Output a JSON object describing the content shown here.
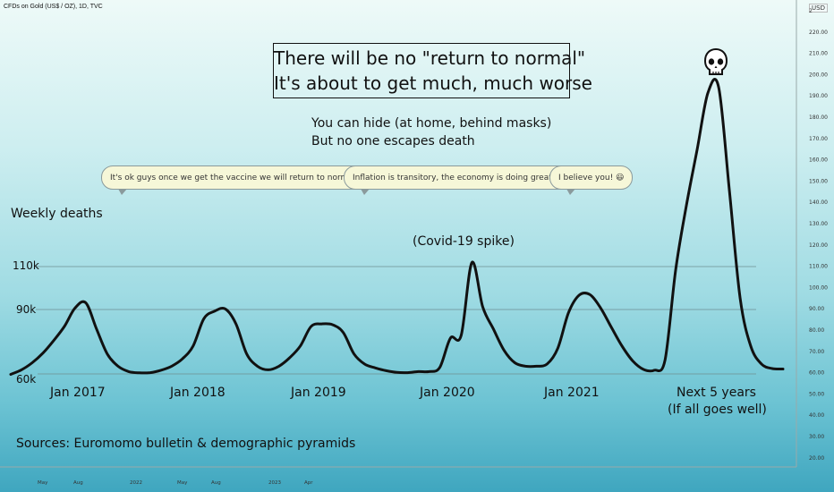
{
  "symbol_label": "CFDs on Gold (US$ / OZ), 1D, TVC",
  "currency_label": "USD",
  "headline": {
    "line1": "There will be no \"return to normal\"",
    "line2": "It's about to get much, much worse"
  },
  "subtitle": {
    "line1": "You can hide (at home, behind masks)",
    "line2": "But no one escapes death"
  },
  "bubbles": [
    {
      "text": "It's ok guys once we get the vaccine we will return to normal 🙄"
    },
    {
      "text": "Inflation is transitory, the economy is doing great 😄"
    },
    {
      "text": "I believe you! 😃"
    }
  ],
  "skull_icon": "skull-icon",
  "chart_data": {
    "type": "line",
    "title": "",
    "ylabel": "Weekly deaths",
    "y_ticks": [
      "60k",
      "90k",
      "110k"
    ],
    "ylim": [
      58,
      203
    ],
    "x_labels": [
      "Jan 2017",
      "Jan 2018",
      "Jan 2019",
      "Jan 2020",
      "Jan 2021",
      "Next 5 years"
    ],
    "x_sublabel": "(If all goes well)",
    "annotation": "(Covid-19 spike)",
    "sources": "Sources: Euromomo bulletin & demographic pyramids",
    "price_axis": [
      "2",
      "220.00",
      "210.00",
      "200.00",
      "190.00",
      "180.00",
      "170.00",
      "160.00",
      "150.00",
      "140.00",
      "130.00",
      "120.00",
      "110.00",
      "100.00",
      "90.00",
      "80.00",
      "70.00",
      "60.00",
      "50.00",
      "40.00",
      "30.00",
      "20.00"
    ],
    "time_axis": [
      "May",
      "Aug",
      "2022",
      "May",
      "Aug",
      "2023",
      "Apr"
    ],
    "grid": true,
    "series": [
      {
        "x": [
          0,
          5,
          10,
          15,
          20,
          25,
          30,
          35,
          40,
          45,
          50,
          55,
          60,
          65,
          70,
          75,
          80,
          85,
          90,
          95,
          100,
          105,
          110,
          115,
          120,
          125,
          130,
          135,
          140,
          145,
          150,
          155,
          160,
          165,
          170,
          175,
          180,
          185,
          190,
          195,
          200,
          205,
          210,
          215,
          220,
          225,
          230,
          235,
          240,
          245,
          250,
          255,
          260,
          265,
          270,
          275,
          280,
          285,
          290,
          295,
          300,
          305,
          310,
          315,
          320,
          325,
          330,
          335,
          340,
          345,
          350,
          355,
          360
        ],
        "values": [
          59.8,
          61.9,
          65.2,
          69.7,
          75.5,
          82.1,
          90.7,
          93.1,
          80.9,
          69.3,
          63.6,
          61.1,
          60.5,
          60.6,
          61.7,
          63.6,
          67.0,
          73.0,
          85.7,
          89.2,
          90.3,
          83.3,
          69.3,
          63.6,
          61.9,
          63.6,
          67.5,
          73.0,
          82.1,
          83.3,
          82.9,
          79.3,
          69.3,
          64.6,
          62.8,
          61.5,
          60.7,
          60.6,
          61.1,
          61.1,
          63.0,
          76.7,
          78.0,
          111.9,
          91.3,
          80.9,
          70.9,
          65.2,
          63.6,
          63.6,
          64.6,
          71.9,
          88.5,
          96.7,
          96.9,
          90.7,
          81.7,
          72.9,
          66.0,
          62.1,
          61.7,
          66.5,
          108.6,
          138.6,
          164.6,
          190.9,
          193.5,
          145.4,
          95.3,
          72.9,
          64.6,
          62.5,
          62.3
        ]
      }
    ]
  }
}
